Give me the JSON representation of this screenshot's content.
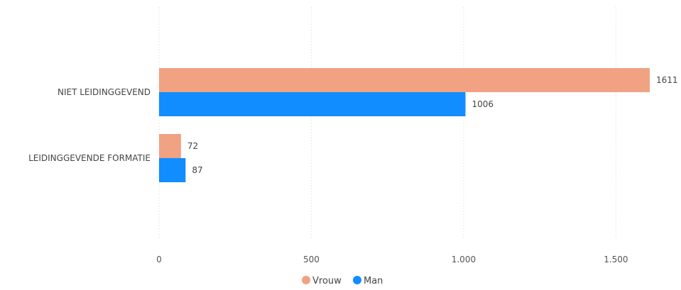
{
  "chart_data": {
    "type": "bar",
    "orientation": "horizontal",
    "categories": [
      "NIET LEIDINGGEVEND",
      "LEIDINGGEVENDE FORMATIE"
    ],
    "series": [
      {
        "name": "Vrouw",
        "values": [
          1611,
          72
        ],
        "color": "#f0a283"
      },
      {
        "name": "Man",
        "values": [
          1006,
          87
        ],
        "color": "#118dff"
      }
    ],
    "xlim": [
      0,
      1611
    ],
    "xticks": [
      0,
      500,
      1000,
      1500
    ],
    "xtick_labels": [
      "0",
      "500",
      "1.000",
      "1.500"
    ],
    "data_labels": [
      [
        "1611",
        "72"
      ],
      [
        "1006",
        "87"
      ]
    ],
    "grid": true,
    "legend_position": "bottom-center"
  }
}
